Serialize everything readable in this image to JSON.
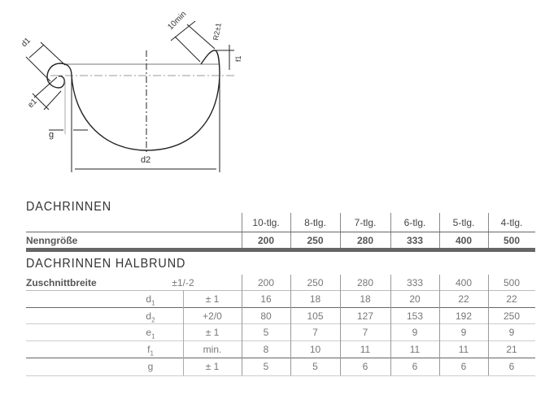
{
  "diagram": {
    "label_d1": "d1",
    "label_e1": "e1",
    "label_g": "g",
    "label_d2": "d2",
    "label_10min": "10min",
    "label_r": "R2±1",
    "label_f1": "f1"
  },
  "table1": {
    "title": "DACHRINNEN",
    "columns": [
      "10-tlg.",
      "8-tlg.",
      "7-tlg.",
      "6-tlg.",
      "5-tlg.",
      "4-tlg."
    ],
    "row_label": "Nenngröße",
    "values": [
      "200",
      "250",
      "280",
      "333",
      "400",
      "500"
    ]
  },
  "table2": {
    "title": "DACHRINNEN HALBRUND",
    "zuschnitt": {
      "label": "Zuschnittbreite",
      "tolerance": "±1/-2",
      "values": [
        "200",
        "250",
        "280",
        "333",
        "400",
        "500"
      ]
    },
    "rows": [
      {
        "symbol": "d",
        "sub": "1",
        "tolerance": "± 1",
        "values": [
          "16",
          "18",
          "18",
          "20",
          "22",
          "22"
        ]
      },
      {
        "symbol": "d",
        "sub": "2",
        "tolerance": "+2/0",
        "values": [
          "80",
          "105",
          "127",
          "153",
          "192",
          "250"
        ]
      },
      {
        "symbol": "e",
        "sub": "1",
        "tolerance": "± 1",
        "values": [
          "5",
          "7",
          "7",
          "9",
          "9",
          "9"
        ]
      },
      {
        "symbol": "f",
        "sub": "1",
        "tolerance": "min.",
        "values": [
          "8",
          "10",
          "11",
          "11",
          "11",
          "21"
        ]
      },
      {
        "symbol": "g",
        "sub": "",
        "tolerance": "± 1",
        "values": [
          "5",
          "5",
          "6",
          "6",
          "6",
          "6"
        ]
      }
    ]
  }
}
